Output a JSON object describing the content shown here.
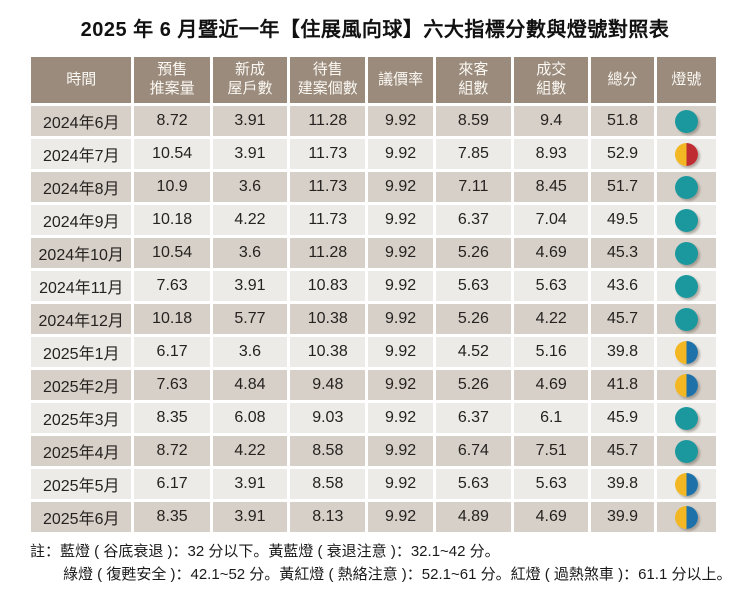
{
  "title": "2025 年 6 月暨近一年【住展風向球】六大指標分數與燈號對照表",
  "colors": {
    "header_bg": "#9a8b7c",
    "row_dark_bg": "#d7d0c8",
    "row_light_bg": "#edebe7",
    "light_green": "#1b989e",
    "light_yellow": "#f2b722",
    "light_red": "#bf2d32",
    "light_blue": "#1f72a9"
  },
  "lights": {
    "green": {
      "label": "綠燈",
      "style": "green"
    },
    "yellow_red": {
      "label": "黃紅燈",
      "style": "yellow_red"
    },
    "yellow_blue": {
      "label": "黃藍燈",
      "style": "yellow_blue"
    }
  },
  "chart_data": {
    "type": "table",
    "title": "2025 年 6 月暨近一年【住展風向球】六大指標分數與燈號對照表",
    "columns": [
      "時間",
      "預售\n推案量",
      "新成\n屋戶數",
      "待售\n建案個數",
      "議價率",
      "來客\n組數",
      "成交\n組數",
      "總分",
      "燈號"
    ],
    "rows": [
      {
        "time": "2024年6月",
        "values": [
          "8.72",
          "3.91",
          "11.28",
          "9.92",
          "8.59",
          "9.4",
          "51.8"
        ],
        "light": "green"
      },
      {
        "time": "2024年7月",
        "values": [
          "10.54",
          "3.91",
          "11.73",
          "9.92",
          "7.85",
          "8.93",
          "52.9"
        ],
        "light": "yellow_red"
      },
      {
        "time": "2024年8月",
        "values": [
          "10.9",
          "3.6",
          "11.73",
          "9.92",
          "7.11",
          "8.45",
          "51.7"
        ],
        "light": "green"
      },
      {
        "time": "2024年9月",
        "values": [
          "10.18",
          "4.22",
          "11.73",
          "9.92",
          "6.37",
          "7.04",
          "49.5"
        ],
        "light": "green"
      },
      {
        "time": "2024年10月",
        "values": [
          "10.54",
          "3.6",
          "11.28",
          "9.92",
          "5.26",
          "4.69",
          "45.3"
        ],
        "light": "green"
      },
      {
        "time": "2024年11月",
        "values": [
          "7.63",
          "3.91",
          "10.83",
          "9.92",
          "5.63",
          "5.63",
          "43.6"
        ],
        "light": "green"
      },
      {
        "time": "2024年12月",
        "values": [
          "10.18",
          "5.77",
          "10.38",
          "9.92",
          "5.26",
          "4.22",
          "45.7"
        ],
        "light": "green"
      },
      {
        "time": "2025年1月",
        "values": [
          "6.17",
          "3.6",
          "10.38",
          "9.92",
          "4.52",
          "5.16",
          "39.8"
        ],
        "light": "yellow_blue"
      },
      {
        "time": "2025年2月",
        "values": [
          "7.63",
          "4.84",
          "9.48",
          "9.92",
          "5.26",
          "4.69",
          "41.8"
        ],
        "light": "yellow_blue"
      },
      {
        "time": "2025年3月",
        "values": [
          "8.35",
          "6.08",
          "9.03",
          "9.92",
          "6.37",
          "6.1",
          "45.9"
        ],
        "light": "green"
      },
      {
        "time": "2025年4月",
        "values": [
          "8.72",
          "4.22",
          "8.58",
          "9.92",
          "6.74",
          "7.51",
          "45.7"
        ],
        "light": "green"
      },
      {
        "time": "2025年5月",
        "values": [
          "6.17",
          "3.91",
          "8.58",
          "9.92",
          "5.63",
          "5.63",
          "39.8"
        ],
        "light": "yellow_blue"
      },
      {
        "time": "2025年6月",
        "values": [
          "8.35",
          "3.91",
          "8.13",
          "9.92",
          "4.89",
          "4.69",
          "39.9"
        ],
        "light": "yellow_blue"
      }
    ]
  },
  "notes": {
    "line1": "註：藍燈 ( 谷底衰退 )：32 分以下。黃藍燈 ( 衰退注意 )：32.1~42 分。",
    "line2": "綠燈 ( 復甦安全 )：42.1~52 分。黃紅燈 ( 熱絡注意 )：52.1~61 分。紅燈 ( 過熱煞車 )：61.1 分以上。"
  }
}
